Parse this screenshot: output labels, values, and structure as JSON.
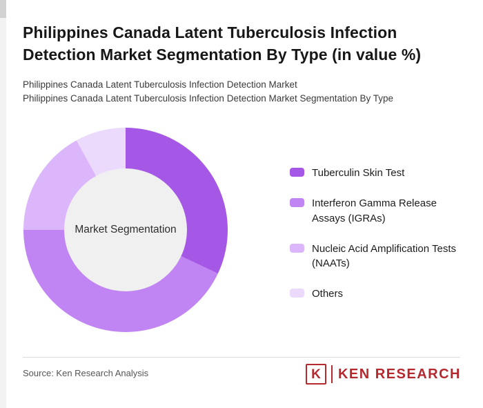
{
  "page": {
    "title": "Philippines Canada Latent Tuberculosis Infection Detection Market Segmentation By Type (in value %)",
    "subtitle_line1": "Philippines Canada Latent Tuberculosis Infection Detection Market",
    "subtitle_line2": "Philippines Canada Latent Tuberculosis Infection Detection Market Segmentation By Type",
    "source": "Source: Ken Research Analysis"
  },
  "chart_data": {
    "type": "pie",
    "variant": "donut",
    "title": "Philippines Canada Latent Tuberculosis Infection Detection Market Segmentation By Type (in value %)",
    "center_label": "Market Segmentation",
    "categories": [
      "Tuberculin Skin Test",
      "Interferon Gamma Release Assays (IGRAs)",
      "Nucleic Acid Amplification Tests (NAATs)",
      "Others"
    ],
    "values": [
      32,
      43,
      17,
      8
    ],
    "colors": [
      "#a558e6",
      "#c085f2",
      "#dcb6fa",
      "#ecdafc"
    ],
    "start_angle_deg": 0,
    "direction": "clockwise",
    "legend_position": "right",
    "data_labels": false,
    "hole_color": "#f0f0f0"
  },
  "branding": {
    "logo_letter": "K",
    "logo_text": "KEN RESEARCH",
    "logo_color": "#b4282e"
  }
}
